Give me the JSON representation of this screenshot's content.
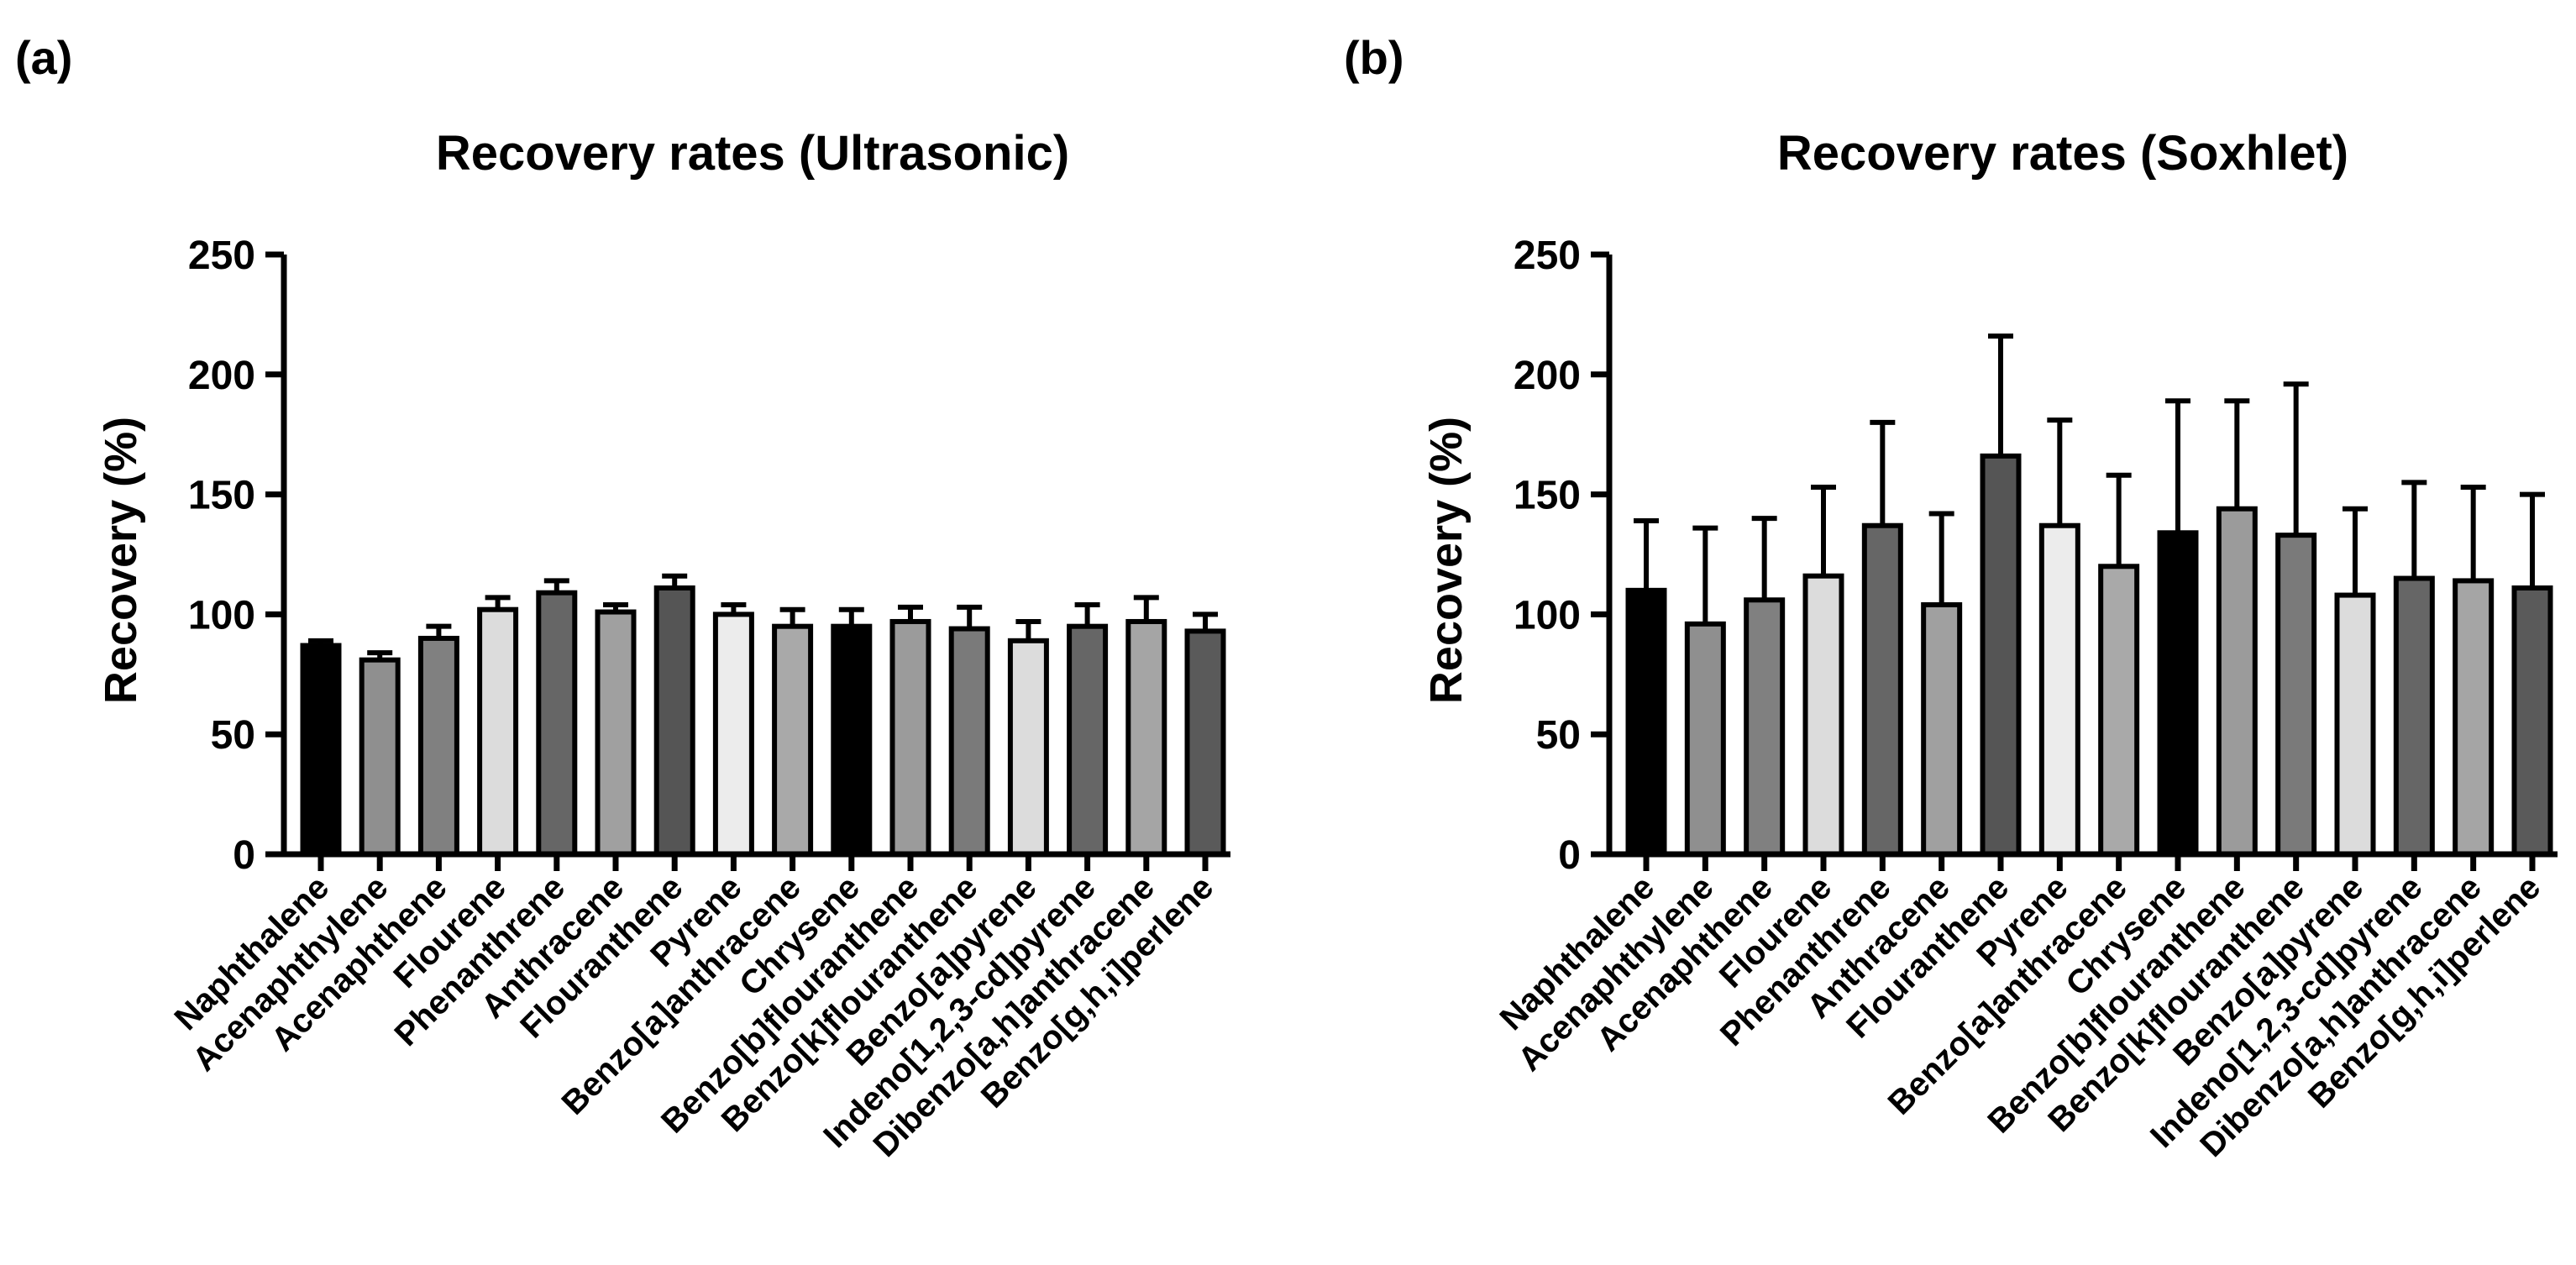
{
  "chart_data": [
    {
      "type": "bar",
      "panel_label": "(a)",
      "title": "Recovery rates (Ultrasonic)",
      "xlabel": "",
      "ylabel": "Recovery (%)",
      "ylim": [
        0,
        250
      ],
      "yticks": [
        "0",
        "50",
        "100",
        "150",
        "200",
        "250"
      ],
      "categories": [
        "Naphthalene",
        "Acenaphthylene",
        "Acenaphthene",
        "Flourene",
        "Phenanthrene",
        "Anthracene",
        "Flouranthene",
        "Pyrene",
        "Benzo[a]anthracene",
        "Chrysene",
        "Benzo[b]flouranthene",
        "Benzo[k]flouranthene",
        "Benzo[a]pyrene",
        "Indeno[1,2,3-cd]pyrene",
        "Dibenzo[a,h]anthracene",
        "Benzo[g,h,i]perlene"
      ],
      "values": [
        87,
        81,
        90,
        102,
        109,
        101,
        111,
        100,
        95,
        95,
        97,
        94,
        89,
        95,
        97,
        93
      ],
      "error": [
        2,
        3,
        5,
        5,
        5,
        3,
        5,
        4,
        7,
        7,
        6,
        9,
        8,
        9,
        10,
        7
      ],
      "colors": [
        "#000000",
        "#8f8f8f",
        "#808080",
        "#dcdcdc",
        "#666666",
        "#a0a0a0",
        "#555555",
        "#ececec",
        "#a9a9a9",
        "#000000",
        "#9b9b9b",
        "#7a7a7a",
        "#dcdcdc",
        "#666666",
        "#a5a5a5",
        "#5a5a5a"
      ]
    },
    {
      "type": "bar",
      "panel_label": "(b)",
      "title": "Recovery rates (Soxhlet)",
      "xlabel": "",
      "ylabel": "Recovery (%)",
      "ylim": [
        0,
        250
      ],
      "yticks": [
        "0",
        "50",
        "100",
        "150",
        "200",
        "250"
      ],
      "categories": [
        "Naphthalene",
        "Acenaphthylene",
        "Acenaphthene",
        "Flourene",
        "Phenanthrene",
        "Anthracene",
        "Flouranthene",
        "Pyrene",
        "Benzo[a]anthracene",
        "Chrysene",
        "Benzo[b]flouranthene",
        "Benzo[k]flouranthene",
        "Benzo[a]pyrene",
        "Indeno[1,2,3-cd]pyrene",
        "Dibenzo[a,h]anthracene",
        "Benzo[g,h,i]perlene"
      ],
      "values": [
        110,
        96,
        106,
        116,
        137,
        104,
        166,
        137,
        120,
        134,
        144,
        133,
        108,
        115,
        114,
        111
      ],
      "error": [
        29,
        40,
        34,
        37,
        43,
        38,
        50,
        44,
        38,
        55,
        45,
        63,
        36,
        40,
        39,
        39
      ],
      "colors": [
        "#000000",
        "#8f8f8f",
        "#808080",
        "#dcdcdc",
        "#666666",
        "#a0a0a0",
        "#555555",
        "#ececec",
        "#a9a9a9",
        "#000000",
        "#9b9b9b",
        "#7a7a7a",
        "#dcdcdc",
        "#666666",
        "#a5a5a5",
        "#5a5a5a"
      ]
    }
  ]
}
